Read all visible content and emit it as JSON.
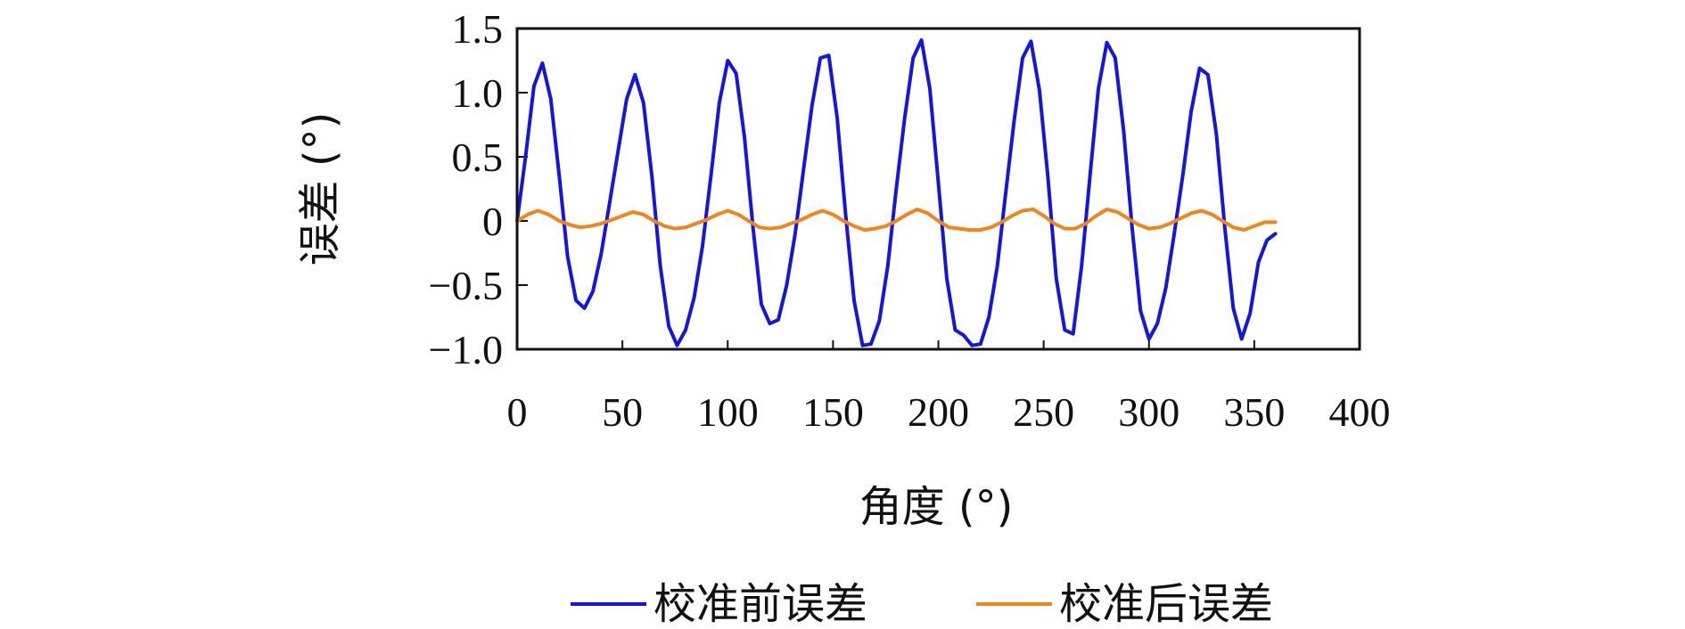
{
  "chart_data": {
    "type": "line",
    "title": "",
    "xlabel": "角度 (°)",
    "ylabel": "误差 (°)",
    "xlim": [
      0,
      400
    ],
    "ylim": [
      -1.0,
      1.5
    ],
    "x_ticks": [
      0,
      50,
      100,
      150,
      200,
      250,
      300,
      350,
      400
    ],
    "x_tick_labels": [
      "0",
      "50",
      "100",
      "150",
      "200",
      "250",
      "300",
      "350",
      "400"
    ],
    "y_ticks": [
      -1.0,
      -0.5,
      0,
      0.5,
      1.0,
      1.5
    ],
    "y_tick_labels": [
      "−1.0",
      "−0.5",
      "0",
      "0.5",
      "1.0",
      "1.5"
    ],
    "grid": false,
    "legend_position": "bottom",
    "series": [
      {
        "name": "校准前误差",
        "color": "#1515e0",
        "points": [
          [
            0,
            0.0
          ],
          [
            4,
            0.5
          ],
          [
            8,
            1.05
          ],
          [
            12,
            1.23
          ],
          [
            16,
            0.95
          ],
          [
            20,
            0.35
          ],
          [
            24,
            -0.28
          ],
          [
            28,
            -0.62
          ],
          [
            32,
            -0.68
          ],
          [
            36,
            -0.55
          ],
          [
            40,
            -0.25
          ],
          [
            44,
            0.15
          ],
          [
            48,
            0.55
          ],
          [
            52,
            0.95
          ],
          [
            56,
            1.14
          ],
          [
            60,
            0.92
          ],
          [
            64,
            0.35
          ],
          [
            68,
            -0.35
          ],
          [
            72,
            -0.82
          ],
          [
            76,
            -0.97
          ],
          [
            80,
            -0.85
          ],
          [
            84,
            -0.6
          ],
          [
            88,
            -0.2
          ],
          [
            92,
            0.35
          ],
          [
            96,
            0.92
          ],
          [
            100,
            1.25
          ],
          [
            104,
            1.15
          ],
          [
            108,
            0.65
          ],
          [
            112,
            -0.05
          ],
          [
            116,
            -0.65
          ],
          [
            120,
            -0.8
          ],
          [
            124,
            -0.77
          ],
          [
            128,
            -0.5
          ],
          [
            132,
            -0.1
          ],
          [
            136,
            0.4
          ],
          [
            140,
            0.9
          ],
          [
            144,
            1.27
          ],
          [
            148,
            1.29
          ],
          [
            152,
            0.8
          ],
          [
            156,
            0.05
          ],
          [
            160,
            -0.62
          ],
          [
            164,
            -0.97
          ],
          [
            168,
            -0.96
          ],
          [
            172,
            -0.78
          ],
          [
            176,
            -0.35
          ],
          [
            180,
            0.25
          ],
          [
            184,
            0.8
          ],
          [
            188,
            1.27
          ],
          [
            192,
            1.41
          ],
          [
            196,
            1.03
          ],
          [
            200,
            0.3
          ],
          [
            204,
            -0.45
          ],
          [
            208,
            -0.85
          ],
          [
            212,
            -0.89
          ],
          [
            216,
            -0.97
          ],
          [
            220,
            -0.96
          ],
          [
            224,
            -0.75
          ],
          [
            228,
            -0.35
          ],
          [
            232,
            0.22
          ],
          [
            236,
            0.78
          ],
          [
            240,
            1.27
          ],
          [
            244,
            1.4
          ],
          [
            248,
            1.02
          ],
          [
            252,
            0.35
          ],
          [
            256,
            -0.45
          ],
          [
            260,
            -0.85
          ],
          [
            264,
            -0.88
          ],
          [
            268,
            -0.35
          ],
          [
            272,
            0.35
          ],
          [
            276,
            1.03
          ],
          [
            280,
            1.39
          ],
          [
            284,
            1.27
          ],
          [
            288,
            0.7
          ],
          [
            292,
            -0.05
          ],
          [
            296,
            -0.7
          ],
          [
            300,
            -0.92
          ],
          [
            304,
            -0.8
          ],
          [
            308,
            -0.52
          ],
          [
            312,
            -0.1
          ],
          [
            316,
            0.35
          ],
          [
            320,
            0.85
          ],
          [
            324,
            1.19
          ],
          [
            328,
            1.14
          ],
          [
            332,
            0.68
          ],
          [
            336,
            -0.05
          ],
          [
            340,
            -0.68
          ],
          [
            344,
            -0.92
          ],
          [
            348,
            -0.72
          ],
          [
            352,
            -0.32
          ],
          [
            356,
            -0.15
          ],
          [
            360,
            -0.1
          ]
        ]
      },
      {
        "name": "校准后误差",
        "color": "#f2841a",
        "points": [
          [
            0,
            0.0
          ],
          [
            5,
            0.05
          ],
          [
            10,
            0.08
          ],
          [
            15,
            0.05
          ],
          [
            20,
            0.0
          ],
          [
            25,
            -0.03
          ],
          [
            30,
            -0.05
          ],
          [
            35,
            -0.04
          ],
          [
            40,
            -0.02
          ],
          [
            45,
            0.01
          ],
          [
            50,
            0.04
          ],
          [
            55,
            0.07
          ],
          [
            60,
            0.05
          ],
          [
            65,
            0.0
          ],
          [
            70,
            -0.04
          ],
          [
            75,
            -0.06
          ],
          [
            80,
            -0.05
          ],
          [
            85,
            -0.02
          ],
          [
            90,
            0.01
          ],
          [
            95,
            0.05
          ],
          [
            100,
            0.08
          ],
          [
            105,
            0.05
          ],
          [
            110,
            0.0
          ],
          [
            115,
            -0.05
          ],
          [
            120,
            -0.06
          ],
          [
            125,
            -0.05
          ],
          [
            130,
            -0.02
          ],
          [
            135,
            0.01
          ],
          [
            140,
            0.05
          ],
          [
            145,
            0.08
          ],
          [
            150,
            0.05
          ],
          [
            155,
            0.0
          ],
          [
            160,
            -0.04
          ],
          [
            165,
            -0.07
          ],
          [
            170,
            -0.06
          ],
          [
            175,
            -0.04
          ],
          [
            180,
            0.0
          ],
          [
            185,
            0.05
          ],
          [
            190,
            0.09
          ],
          [
            195,
            0.06
          ],
          [
            200,
            0.0
          ],
          [
            205,
            -0.05
          ],
          [
            210,
            -0.06
          ],
          [
            215,
            -0.07
          ],
          [
            220,
            -0.07
          ],
          [
            225,
            -0.05
          ],
          [
            230,
            -0.01
          ],
          [
            235,
            0.04
          ],
          [
            240,
            0.08
          ],
          [
            245,
            0.09
          ],
          [
            250,
            0.04
          ],
          [
            255,
            -0.02
          ],
          [
            260,
            -0.06
          ],
          [
            265,
            -0.06
          ],
          [
            270,
            -0.02
          ],
          [
            275,
            0.04
          ],
          [
            280,
            0.09
          ],
          [
            285,
            0.07
          ],
          [
            290,
            0.02
          ],
          [
            295,
            -0.03
          ],
          [
            300,
            -0.06
          ],
          [
            305,
            -0.05
          ],
          [
            310,
            -0.02
          ],
          [
            315,
            0.02
          ],
          [
            320,
            0.06
          ],
          [
            325,
            0.08
          ],
          [
            330,
            0.05
          ],
          [
            335,
            0.0
          ],
          [
            340,
            -0.05
          ],
          [
            345,
            -0.07
          ],
          [
            350,
            -0.04
          ],
          [
            355,
            -0.01
          ],
          [
            360,
            -0.01
          ]
        ]
      }
    ]
  }
}
